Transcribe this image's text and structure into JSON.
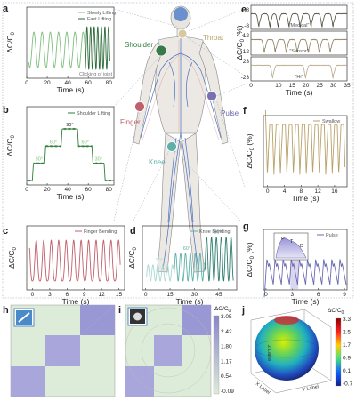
{
  "panels": {
    "a": {
      "letter": "a",
      "xlabel": "Time (s)",
      "ylabel": "ΔC/C",
      "ylabel_sub": "0",
      "xticks": [
        "0",
        "20",
        "40",
        "60",
        "80"
      ],
      "legend": [
        "Slowly Lifting",
        "Fast Lifting"
      ],
      "legend_colors": [
        "#7fbf7f",
        "#2e6b3a"
      ],
      "note": "Clicking of joint"
    },
    "b": {
      "letter": "b",
      "xlabel": "Time (s)",
      "ylabel": "ΔC/C",
      "ylabel_sub": "0",
      "xticks": [
        "0",
        "20",
        "40",
        "60",
        "80"
      ],
      "legend": [
        "Shoulder Lifting"
      ],
      "angles": [
        "30°",
        "60°",
        "90°",
        "60°",
        "30°"
      ],
      "color": "#2e7d3a"
    },
    "c": {
      "letter": "c",
      "xlabel": "Time (s)",
      "ylabel": "ΔC/C",
      "ylabel_sub": "0",
      "xticks": [
        "0",
        "3",
        "6",
        "9",
        "12",
        "15"
      ],
      "legend": [
        "Finger Bending"
      ],
      "color": "#c0606a"
    },
    "d": {
      "letter": "d",
      "xlabel": "Time (s)",
      "ylabel": "ΔC/C",
      "ylabel_sub": "0",
      "xticks": [
        "0",
        "15",
        "30",
        "45"
      ],
      "legend": [
        "Knee Bending"
      ],
      "angles": [
        "30°",
        "60°",
        "90°"
      ],
      "colors": [
        "#a8d8d0",
        "#5fb0a8",
        "#2f7d6f"
      ]
    },
    "e": {
      "letter": "e",
      "ylabel": "ΔC/C",
      "ylabel_sub": "0",
      "yunit": "(%)",
      "xlabel": "Time (s)",
      "xticks": [
        "0",
        "10",
        "15",
        "20",
        "25",
        "30",
        "35"
      ],
      "yticks_top": [
        "8",
        "-8"
      ],
      "yticks_mid": [
        "12",
        "-12"
      ],
      "yticks_bot": [
        "23",
        "-23"
      ],
      "words": [
        "\"Medical\"",
        "\"Sensor\"",
        "\"Hi\""
      ],
      "colors": [
        "#4a4a3a",
        "#8a7a5a",
        "#b8a888"
      ]
    },
    "f": {
      "letter": "f",
      "xlabel": "Time (s)",
      "ylabel": "ΔC/C",
      "ylabel_sub": "0",
      "yunit": "(%)",
      "xticks": [
        "0",
        "4",
        "8",
        "12",
        "16"
      ],
      "legend": [
        "Swallow"
      ],
      "color": "#b8a26a"
    },
    "g": {
      "letter": "g",
      "xlabel": "Time (s)",
      "ylabel": "ΔC/C",
      "ylabel_sub": "0",
      "yunit": "(%)",
      "xticks": [
        "0",
        "3",
        "6",
        "9"
      ],
      "legend": [
        "Pulse"
      ],
      "inset": [
        "P",
        "T",
        "D"
      ],
      "color": "#6a6ab0"
    },
    "h": {
      "letter": "h"
    },
    "i": {
      "letter": "i"
    },
    "j": {
      "letter": "j",
      "cb_title": "ΔC/C",
      "cb_sub": "0",
      "cb_ticks": [
        "3.3",
        "2.5",
        "1.7",
        "0.9",
        "0.1",
        "-0.7"
      ],
      "axes": [
        "X Label",
        "Y Label",
        "Z Label"
      ]
    },
    "colorbar_hi": {
      "title": "ΔC/C",
      "sub": "0",
      "ticks": [
        "3.05",
        "2.42",
        "1.80",
        "1.17",
        "0.54",
        "-0.09"
      ]
    }
  },
  "body_labels": {
    "shoulder": "Shoulder",
    "throat": "Throat",
    "finger": "Finger",
    "pulse": "Pulse",
    "knee": "Knee"
  },
  "body_label_colors": {
    "shoulder": "#2e7d3a",
    "throat": "#b8a26a",
    "finger": "#c0606a",
    "pulse": "#6a6ab0",
    "knee": "#5fb0a8"
  },
  "chart_data": [
    {
      "panel": "a",
      "type": "line",
      "x_range": [
        0,
        85
      ],
      "series": [
        {
          "name": "Slowly Lifting",
          "period_s": 8,
          "x_span": [
            3,
            58
          ]
        },
        {
          "name": "Fast Lifting",
          "period_s": 3.5,
          "x_span": [
            58,
            80
          ]
        }
      ]
    },
    {
      "panel": "b",
      "type": "line",
      "x_range": [
        0,
        85
      ],
      "steps_deg": [
        30,
        60,
        90,
        60,
        30
      ]
    },
    {
      "panel": "c",
      "type": "line",
      "x_range": [
        0,
        15
      ],
      "cycles": 12
    },
    {
      "panel": "d",
      "type": "line",
      "x_range": [
        0,
        55
      ],
      "groups": [
        "30°",
        "60°",
        "90°"
      ]
    },
    {
      "panel": "e",
      "type": "line",
      "x_range": [
        0,
        35
      ],
      "words": [
        "Medical",
        "Sensor",
        "Hi"
      ]
    },
    {
      "panel": "f",
      "type": "line",
      "x_range": [
        0,
        18
      ],
      "cycles": 11
    },
    {
      "panel": "g",
      "type": "line",
      "x_range": [
        0,
        9
      ],
      "cycles": 10
    }
  ]
}
